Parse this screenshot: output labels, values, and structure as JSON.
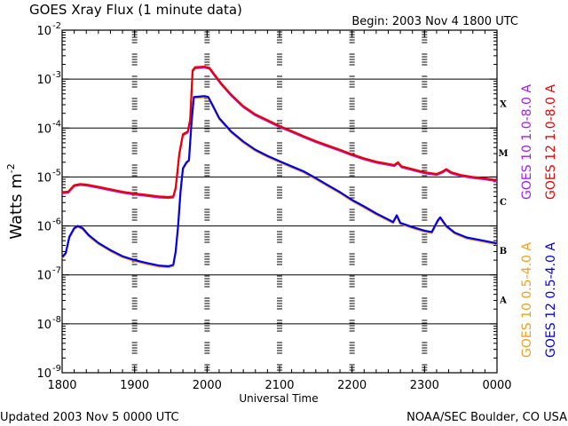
{
  "header": {
    "title": "GOES Xray Flux (1 minute data)",
    "begin": "Begin: 2003 Nov 4 1800 UTC"
  },
  "footer": {
    "updated": "Updated 2003 Nov  5 0000 UTC",
    "credit": "NOAA/SEC Boulder, CO USA"
  },
  "chart_data": {
    "type": "line",
    "title": "GOES Xray Flux (1 minute data)",
    "xlabel": "Universal Time",
    "ylabel_main": "Watts m",
    "ylabel_sup": "-2",
    "x_unit": "minutes after 2003 Nov 4 1800 UTC",
    "xlim": [
      0,
      360
    ],
    "x_ticks": [
      {
        "x": 0,
        "label": "1800"
      },
      {
        "x": 60,
        "label": "1900"
      },
      {
        "x": 120,
        "label": "2000"
      },
      {
        "x": 180,
        "label": "2100"
      },
      {
        "x": 240,
        "label": "2200"
      },
      {
        "x": 300,
        "label": "2300"
      },
      {
        "x": 360,
        "label": "0000"
      }
    ],
    "yscale": "log",
    "ylim": [
      1e-09,
      0.01
    ],
    "y_ticks": [
      {
        "exp": -9,
        "label": "10",
        "sup": "-9"
      },
      {
        "exp": -8,
        "label": "10",
        "sup": "-8"
      },
      {
        "exp": -7,
        "label": "10",
        "sup": "-7"
      },
      {
        "exp": -6,
        "label": "10",
        "sup": "-6"
      },
      {
        "exp": -5,
        "label": "10",
        "sup": "-5"
      },
      {
        "exp": -4,
        "label": "10",
        "sup": "-4"
      },
      {
        "exp": -3,
        "label": "10",
        "sup": "-3"
      },
      {
        "exp": -2,
        "label": "10",
        "sup": "-2"
      }
    ],
    "class_labels": [
      {
        "label": "A",
        "exp": -7.5
      },
      {
        "label": "B",
        "exp": -6.5
      },
      {
        "label": "C",
        "exp": -5.5
      },
      {
        "label": "M",
        "exp": -4.5
      },
      {
        "label": "X",
        "exp": -3.5
      }
    ],
    "horizontal_lines_exp": [
      -8,
      -7,
      -6,
      -5,
      -4,
      -3
    ],
    "dashed_day_markers_x": [
      60,
      120,
      180,
      240,
      300
    ],
    "legend": [
      {
        "name": "GOES 10 1.0-8.0 A",
        "color": "#a020f0"
      },
      {
        "name": "GOES 12 1.0-8.0 A",
        "color": "#ee0000"
      },
      {
        "name": "GOES 10 0.5-4.0 A",
        "color": "#f0a020"
      },
      {
        "name": "GOES 12 0.5-4.0 A",
        "color": "#0000ee"
      }
    ],
    "series": [
      {
        "name": "GOES 12 1.0-8.0 A",
        "color": "#ee0000",
        "points": [
          [
            0,
            4.9e-06
          ],
          [
            5,
            5e-06
          ],
          [
            10,
            6.8e-06
          ],
          [
            15,
            7.2e-06
          ],
          [
            20,
            7e-06
          ],
          [
            30,
            6.3e-06
          ],
          [
            40,
            5.6e-06
          ],
          [
            50,
            5e-06
          ],
          [
            60,
            4.6e-06
          ],
          [
            70,
            4.3e-06
          ],
          [
            80,
            4e-06
          ],
          [
            88,
            3.9e-06
          ],
          [
            92,
            4e-06
          ],
          [
            94,
            6e-06
          ],
          [
            97,
            3e-05
          ],
          [
            100,
            7.5e-05
          ],
          [
            104,
            8.5e-05
          ],
          [
            106,
            0.00015
          ],
          [
            108,
            0.0015
          ],
          [
            110,
            0.00175
          ],
          [
            118,
            0.0018
          ],
          [
            122,
            0.0017
          ],
          [
            126,
            0.00125
          ],
          [
            132,
            0.0008
          ],
          [
            140,
            0.00048
          ],
          [
            150,
            0.00028
          ],
          [
            160,
            0.00019
          ],
          [
            170,
            0.000145
          ],
          [
            180,
            0.00011
          ],
          [
            190,
            8.7e-05
          ],
          [
            200,
            6.8e-05
          ],
          [
            210,
            5.4e-05
          ],
          [
            220,
            4.4e-05
          ],
          [
            230,
            3.6e-05
          ],
          [
            240,
            2.9e-05
          ],
          [
            250,
            2.4e-05
          ],
          [
            260,
            2.05e-05
          ],
          [
            270,
            1.85e-05
          ],
          [
            275,
            1.75e-05
          ],
          [
            278,
            2e-05
          ],
          [
            281,
            1.65e-05
          ],
          [
            290,
            1.45e-05
          ],
          [
            300,
            1.25e-05
          ],
          [
            310,
            1.15e-05
          ],
          [
            315,
            1.3e-05
          ],
          [
            318,
            1.45e-05
          ],
          [
            322,
            1.25e-05
          ],
          [
            330,
            1.1e-05
          ],
          [
            340,
            1e-05
          ],
          [
            350,
            9.4e-06
          ],
          [
            360,
            8.6e-06
          ]
        ]
      },
      {
        "name": "GOES 12 0.5-4.0 A",
        "color": "#0000ee",
        "points": [
          [
            0,
            2.3e-07
          ],
          [
            3,
            2.8e-07
          ],
          [
            6,
            6e-07
          ],
          [
            10,
            9e-07
          ],
          [
            13,
            1e-06
          ],
          [
            17,
            9e-07
          ],
          [
            22,
            6.5e-07
          ],
          [
            30,
            4.5e-07
          ],
          [
            40,
            3.2e-07
          ],
          [
            50,
            2.4e-07
          ],
          [
            60,
            2e-07
          ],
          [
            70,
            1.75e-07
          ],
          [
            80,
            1.55e-07
          ],
          [
            88,
            1.5e-07
          ],
          [
            92,
            1.6e-07
          ],
          [
            94,
            3e-07
          ],
          [
            96,
            1e-06
          ],
          [
            98,
            5e-06
          ],
          [
            100,
            1.5e-05
          ],
          [
            103,
            2e-05
          ],
          [
            105,
            2.2e-05
          ],
          [
            107,
            0.00012
          ],
          [
            109,
            0.00043
          ],
          [
            118,
            0.00045
          ],
          [
            121,
            0.00043
          ],
          [
            125,
            0.00028
          ],
          [
            130,
            0.00016
          ],
          [
            140,
            8.5e-05
          ],
          [
            150,
            5.3e-05
          ],
          [
            160,
            3.6e-05
          ],
          [
            170,
            2.7e-05
          ],
          [
            180,
            2.1e-05
          ],
          [
            190,
            1.65e-05
          ],
          [
            200,
            1.3e-05
          ],
          [
            210,
            9.5e-06
          ],
          [
            220,
            6.8e-06
          ],
          [
            230,
            4.9e-06
          ],
          [
            240,
            3.4e-06
          ],
          [
            250,
            2.5e-06
          ],
          [
            260,
            1.8e-06
          ],
          [
            270,
            1.35e-06
          ],
          [
            274,
            1.2e-06
          ],
          [
            277,
            1.65e-06
          ],
          [
            280,
            1.15e-06
          ],
          [
            290,
            9.5e-07
          ],
          [
            300,
            8e-07
          ],
          [
            306,
            7.5e-07
          ],
          [
            311,
            1.3e-06
          ],
          [
            313,
            1.5e-06
          ],
          [
            318,
            1e-06
          ],
          [
            325,
            7.3e-07
          ],
          [
            335,
            5.8e-07
          ],
          [
            345,
            5.2e-07
          ],
          [
            360,
            4.4e-07
          ]
        ]
      }
    ]
  }
}
